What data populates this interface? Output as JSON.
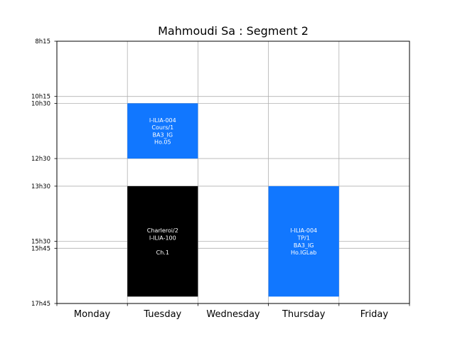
{
  "chart_data": {
    "type": "timetable",
    "title": "Mahmoudi Sa : Segment 2",
    "days": [
      "Monday",
      "Tuesday",
      "Wednesday",
      "Thursday",
      "Friday"
    ],
    "ylim": [
      "8h15",
      "17h45"
    ],
    "yticks": [
      "8h15",
      "10h15",
      "10h30",
      "12h30",
      "13h30",
      "15h30",
      "15h45",
      "17h45"
    ],
    "grid": true,
    "events": [
      {
        "day": "Tuesday",
        "start": "10h30",
        "end": "12h30",
        "color": "#1177ff",
        "text_color": "#ffffff",
        "lines": [
          "I-ILIA-004",
          "Cours/1",
          "BA3_IG",
          "Ho.05"
        ]
      },
      {
        "day": "Tuesday",
        "start": "13h30",
        "end": "17h30",
        "color": "#000000",
        "text_color": "#ffffff",
        "lines": [
          "Charleroi/2",
          "I-ILIA-100",
          "",
          "Ch.1"
        ]
      },
      {
        "day": "Thursday",
        "start": "13h30",
        "end": "17h30",
        "color": "#1177ff",
        "text_color": "#ffffff",
        "lines": [
          "I-ILIA-004",
          "TP/1",
          "BA3_IG",
          "Ho.IGLab"
        ]
      }
    ]
  }
}
